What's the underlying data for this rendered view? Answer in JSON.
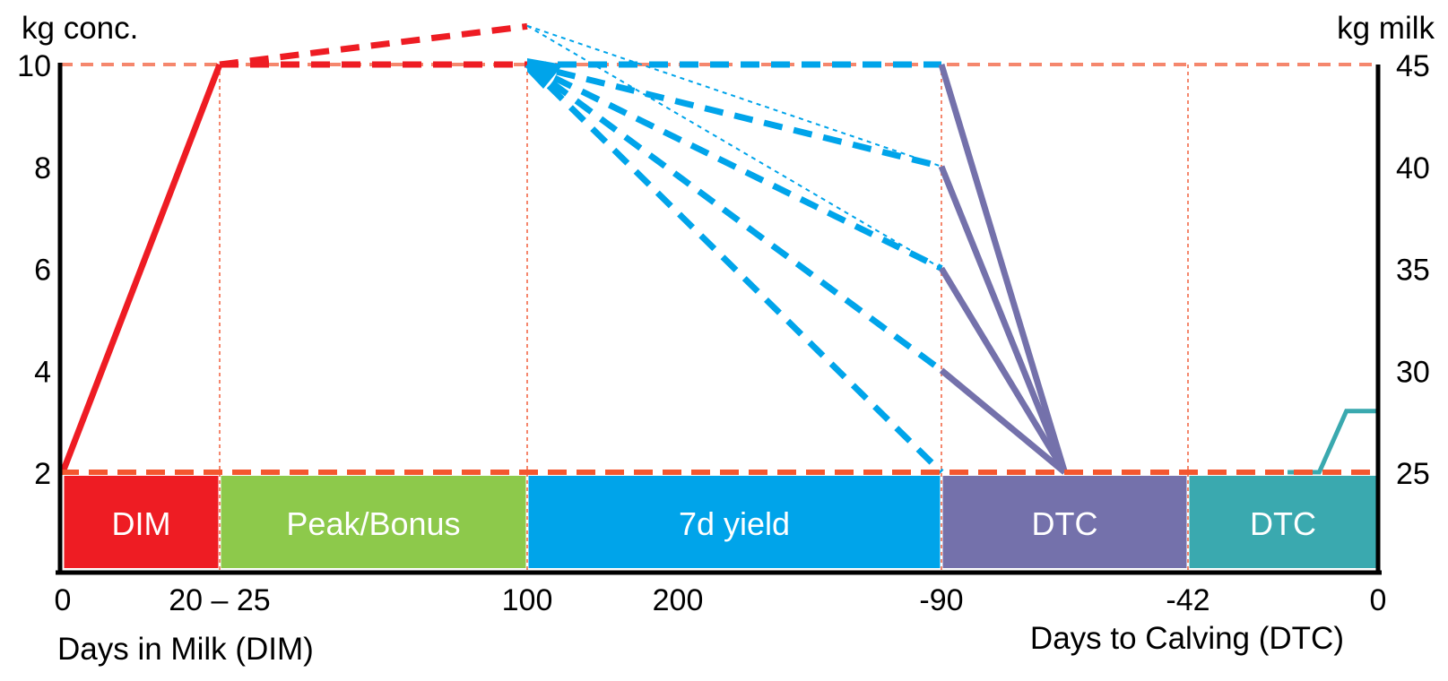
{
  "chart_data": {
    "type": "line",
    "title": "",
    "y_axis_left": {
      "label": "kg conc.",
      "unit": "conc",
      "range": [
        2,
        10
      ],
      "ticks": [
        10,
        8,
        6,
        4,
        2
      ]
    },
    "y_axis_right": {
      "label": "kg milk",
      "unit": "milk",
      "range": [
        25,
        45
      ],
      "ticks": [
        45,
        40,
        35,
        30,
        25
      ]
    },
    "x_axis": {
      "label_left": "Days in Milk (DIM)",
      "label_right": "Days to Calving (DTC)",
      "ticks": [
        {
          "axis": "dim",
          "day": 0,
          "label": "0"
        },
        {
          "axis": "dim",
          "day": 25,
          "label": "20 – 25"
        },
        {
          "axis": "dim",
          "day": 100,
          "label": "100"
        },
        {
          "axis": "dim",
          "day": 200,
          "label": "200"
        },
        {
          "axis": "dtc",
          "day": -90,
          "label": "-90"
        },
        {
          "axis": "dtc",
          "day": -42,
          "label": "-42"
        },
        {
          "axis": "dtc",
          "day": 0,
          "label": "0"
        }
      ]
    },
    "bands": [
      {
        "label": "DIM",
        "from": {
          "axis": "dim",
          "day": 0
        },
        "to": {
          "axis": "dim",
          "day": 25
        },
        "color": "#EE1C23"
      },
      {
        "label": "Peak/Bonus",
        "from": {
          "axis": "dim",
          "day": 25
        },
        "to": {
          "axis": "dim",
          "day": 100
        },
        "color": "#8DC94B"
      },
      {
        "label": "7d yield",
        "from": {
          "axis": "dim",
          "day": 100
        },
        "to": {
          "axis": "dtc",
          "day": -90
        },
        "color": "#00A4EA"
      },
      {
        "label": "DTC",
        "from": {
          "axis": "dtc",
          "day": -90
        },
        "to": {
          "axis": "dtc",
          "day": -42
        },
        "color": "#7471AB"
      },
      {
        "label": "DTC",
        "from": {
          "axis": "dtc",
          "day": -42
        },
        "to": {
          "axis": "dtc",
          "day": 0
        },
        "color": "#3AA9AF"
      }
    ],
    "reference_lines": {
      "horizontal": [
        {
          "unit": "milk",
          "value": 45,
          "style": "light"
        },
        {
          "unit": "milk",
          "value": 25,
          "style": "strong"
        }
      ],
      "vertical": [
        {
          "axis": "dim",
          "day": 25
        },
        {
          "axis": "dim",
          "day": 100
        },
        {
          "axis": "dtc",
          "day": -90
        },
        {
          "axis": "dtc",
          "day": -42
        }
      ]
    },
    "series": [
      {
        "name": "fresh-concentrate",
        "style": "red-solid",
        "unit": "conc",
        "color": "#EE1C23",
        "points": [
          {
            "axis": "dim",
            "day": 0,
            "value": 2
          },
          {
            "axis": "dim",
            "day": 25,
            "value": 10
          }
        ]
      },
      {
        "name": "plateau-concentrate",
        "style": "red-dashed",
        "unit": "conc",
        "color": "#EE1C23",
        "points": [
          {
            "axis": "dim",
            "day": 25,
            "value": 10
          },
          {
            "axis": "dim",
            "day": 100,
            "value": 10
          }
        ]
      },
      {
        "name": "bonus-concentrate",
        "style": "red-dashed",
        "unit": "conc",
        "color": "#EE1C23",
        "points": [
          {
            "axis": "dim",
            "day": 25,
            "value": 10
          },
          {
            "axis": "dim",
            "day": 100,
            "value": 10.75
          }
        ]
      },
      {
        "name": "yield-projection-45",
        "style": "blue-dashed",
        "unit": "milk",
        "color": "#00A4EA",
        "points": [
          {
            "axis": "dim",
            "day": 100,
            "value": 45
          },
          {
            "axis": "dtc",
            "day": -90,
            "value": 45
          }
        ]
      },
      {
        "name": "yield-projection-40",
        "style": "blue-dashed",
        "unit": "milk",
        "color": "#00A4EA",
        "points": [
          {
            "axis": "dim",
            "day": 100,
            "value": 45
          },
          {
            "axis": "dtc",
            "day": -90,
            "value": 40
          }
        ]
      },
      {
        "name": "yield-projection-35",
        "style": "blue-dashed",
        "unit": "milk",
        "color": "#00A4EA",
        "points": [
          {
            "axis": "dim",
            "day": 100,
            "value": 45
          },
          {
            "axis": "dtc",
            "day": -90,
            "value": 35
          }
        ]
      },
      {
        "name": "yield-projection-30",
        "style": "blue-dashed",
        "unit": "milk",
        "color": "#00A4EA",
        "points": [
          {
            "axis": "dim",
            "day": 100,
            "value": 45
          },
          {
            "axis": "dtc",
            "day": -90,
            "value": 30
          }
        ]
      },
      {
        "name": "yield-projection-25",
        "style": "blue-dashed",
        "unit": "milk",
        "color": "#00A4EA",
        "points": [
          {
            "axis": "dim",
            "day": 100,
            "value": 45
          },
          {
            "axis": "dtc",
            "day": -90,
            "value": 25
          }
        ]
      },
      {
        "name": "bonus-projection-40",
        "style": "blue-dotted",
        "unit": "milk",
        "color": "#00A4EA",
        "points": [
          {
            "axis": "dim",
            "day": 100,
            "value": 46.9
          },
          {
            "axis": "dtc",
            "day": -90,
            "value": 40
          }
        ]
      },
      {
        "name": "bonus-projection-35",
        "style": "blue-dotted",
        "unit": "milk",
        "color": "#00A4EA",
        "points": [
          {
            "axis": "dim",
            "day": 100,
            "value": 46.9
          },
          {
            "axis": "dtc",
            "day": -90,
            "value": 35
          }
        ]
      },
      {
        "name": "dry-off-from-45",
        "style": "purple-solid",
        "unit": "milk",
        "color": "#7471AB",
        "points": [
          {
            "axis": "dtc",
            "day": -90,
            "value": 45
          },
          {
            "axis": "dtc",
            "day": -66,
            "value": 25
          }
        ]
      },
      {
        "name": "dry-off-from-40",
        "style": "purple-solid",
        "unit": "milk",
        "color": "#7471AB",
        "points": [
          {
            "axis": "dtc",
            "day": -90,
            "value": 40
          },
          {
            "axis": "dtc",
            "day": -66,
            "value": 25
          }
        ]
      },
      {
        "name": "dry-off-from-35",
        "style": "purple-solid",
        "unit": "milk",
        "color": "#7471AB",
        "points": [
          {
            "axis": "dtc",
            "day": -90,
            "value": 35
          },
          {
            "axis": "dtc",
            "day": -66,
            "value": 25
          }
        ]
      },
      {
        "name": "dry-off-from-30",
        "style": "purple-solid",
        "unit": "milk",
        "color": "#7471AB",
        "points": [
          {
            "axis": "dtc",
            "day": -90,
            "value": 30
          },
          {
            "axis": "dtc",
            "day": -66,
            "value": 25
          }
        ]
      },
      {
        "name": "dry-period-intake",
        "style": "teal-solid",
        "unit": "milk",
        "color": "#3AA9AF",
        "points": [
          {
            "axis": "dtc",
            "day": -20,
            "value": 25
          },
          {
            "axis": "dtc",
            "day": -13,
            "value": 25
          },
          {
            "axis": "dtc",
            "day": -7,
            "value": 28
          },
          {
            "axis": "dtc",
            "day": 0,
            "value": 28
          }
        ]
      }
    ],
    "colors": {
      "red": "#EE1C23",
      "green": "#8DC94B",
      "blue": "#00A4EA",
      "purple": "#7471AB",
      "teal": "#3AA9AF",
      "salmon_light": "#F5876D",
      "salmon_strong": "#F4572F",
      "axis_black": "#000000",
      "band_text": "#FFFFFF"
    }
  }
}
